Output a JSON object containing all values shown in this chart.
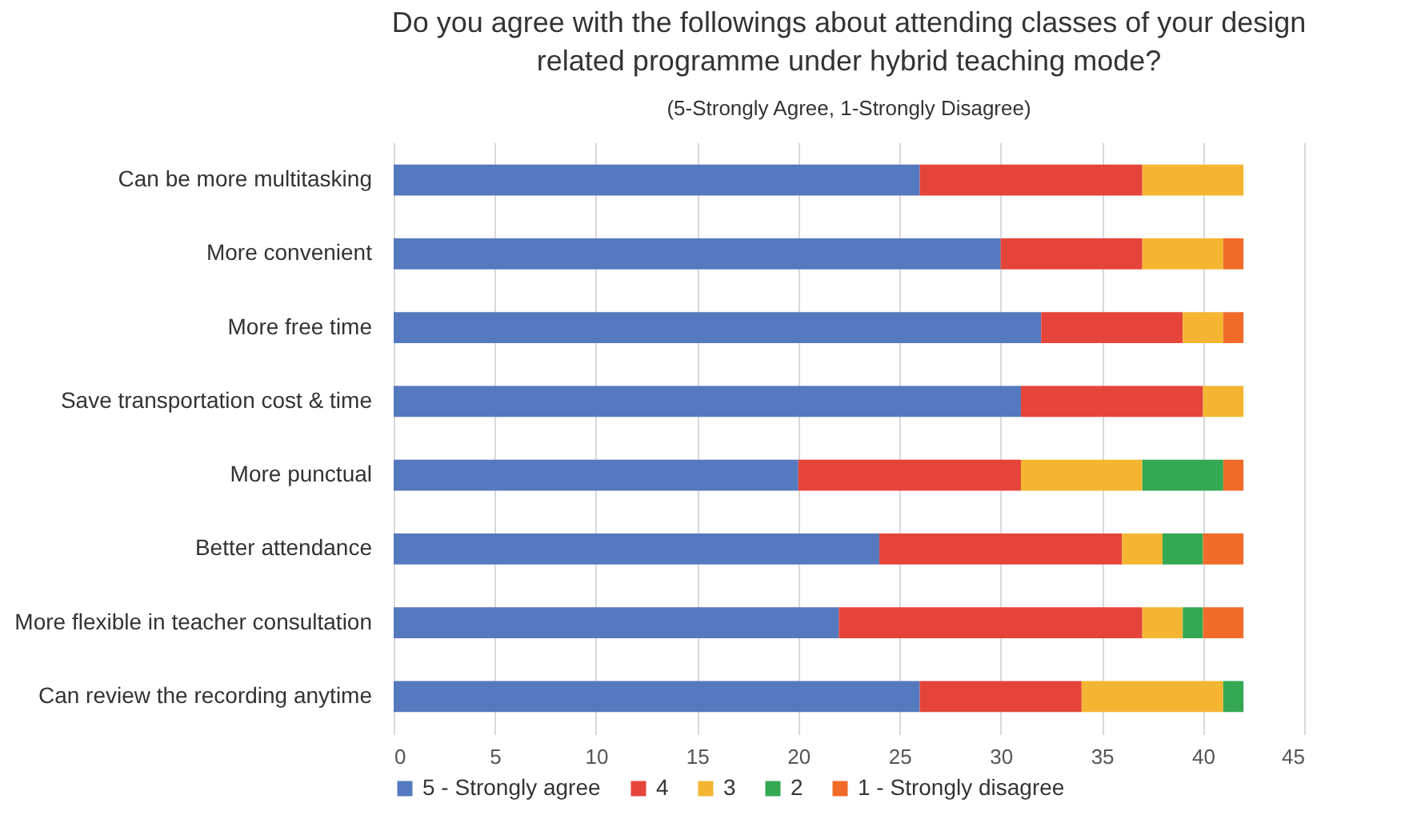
{
  "chart_data": {
    "type": "bar",
    "orientation": "horizontal",
    "stacked": true,
    "title": "Do you agree with the followings about attending classes of your design\nrelated programme under hybrid teaching mode?",
    "subtitle": "(5-Strongly Agree, 1-Strongly Disagree)",
    "categories": [
      "Can be more multitasking",
      "More convenient",
      "More free time",
      "Save transportation cost & time",
      "More punctual",
      "Better attendance",
      "More flexible in teacher consultation",
      "Can review the recording anytime"
    ],
    "series": [
      {
        "name": "5 - Strongly agree",
        "color": "#5579be",
        "values": [
          26,
          30,
          32,
          31,
          20,
          24,
          22,
          26
        ]
      },
      {
        "name": "4",
        "color": "#e4443a",
        "values": [
          11,
          7,
          7,
          9,
          11,
          12,
          15,
          8
        ]
      },
      {
        "name": "3",
        "color": "#f4b632",
        "values": [
          5,
          4,
          2,
          2,
          6,
          2,
          2,
          7
        ]
      },
      {
        "name": "2",
        "color": "#34a853",
        "values": [
          0,
          0,
          0,
          0,
          4,
          2,
          1,
          1
        ]
      },
      {
        "name": "1 - Strongly disagree",
        "color": "#f06b2a",
        "values": [
          0,
          1,
          1,
          0,
          1,
          2,
          2,
          0
        ]
      }
    ],
    "xlim": [
      0,
      45
    ],
    "xticks": [
      0,
      5,
      10,
      15,
      20,
      25,
      30,
      35,
      40,
      45
    ],
    "grid": "x",
    "legend": "bottom"
  }
}
